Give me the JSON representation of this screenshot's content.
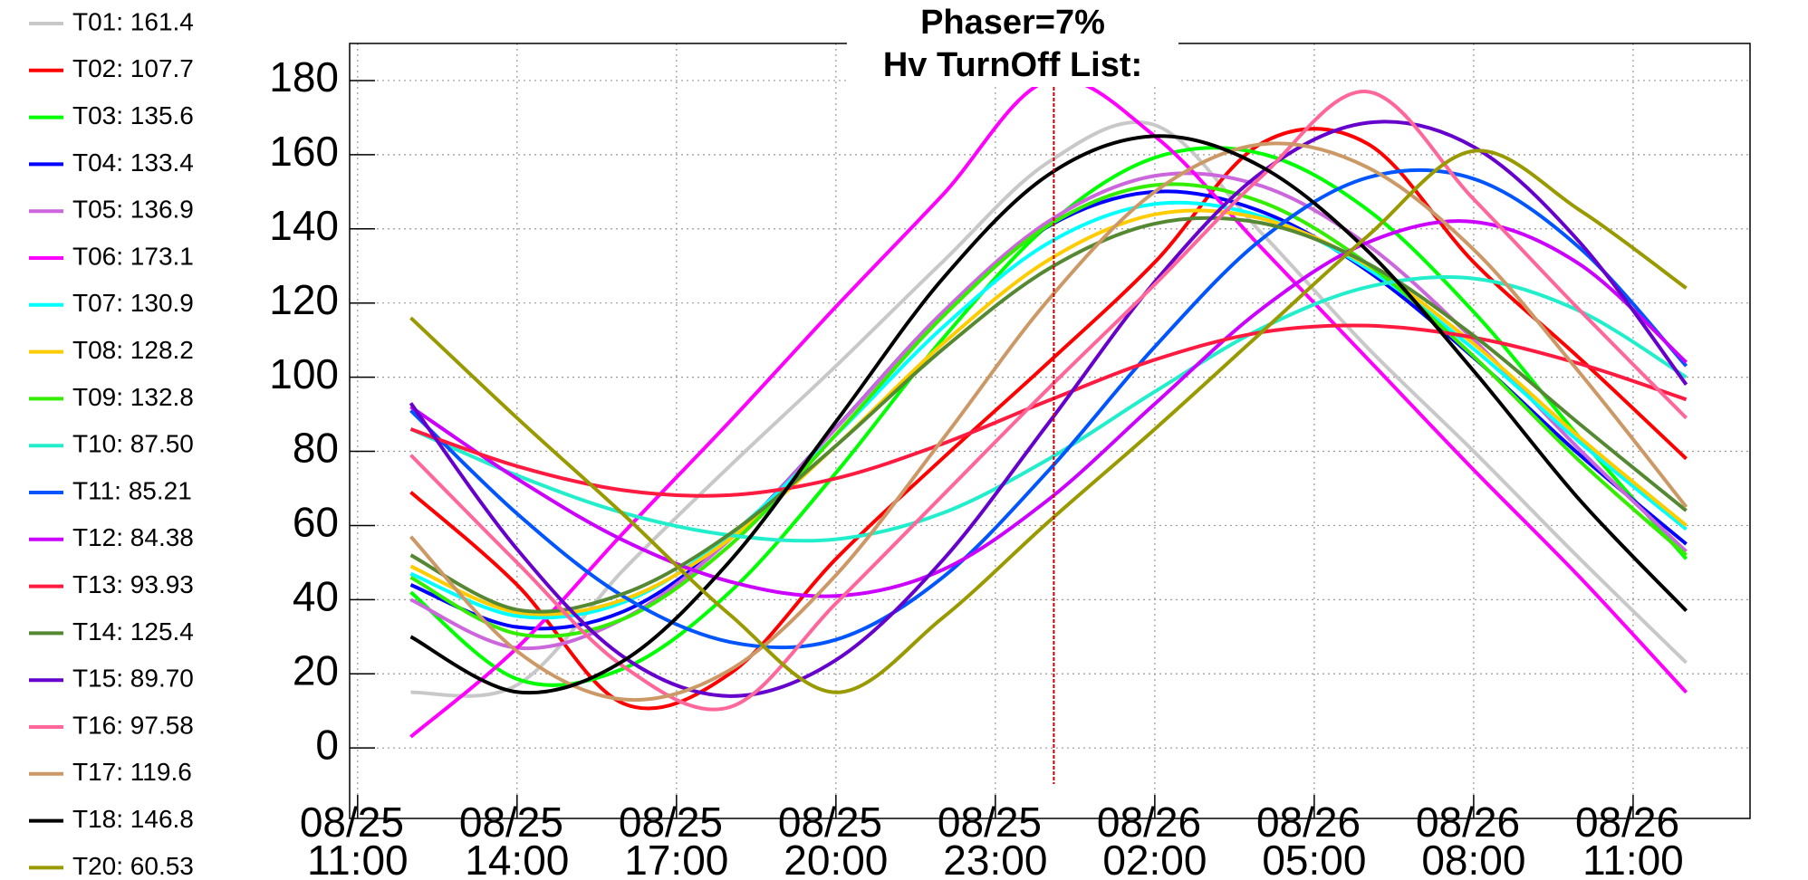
{
  "chart_data": {
    "type": "line",
    "title": "Phaser=7%",
    "subtitle": "Hv TurnOff List:",
    "x": [
      "08/25 12:00",
      "08/25 14:00",
      "08/25 16:00",
      "08/25 18:00",
      "08/25 20:00",
      "08/25 22:00",
      "08/26 00:00",
      "08/26 02:00",
      "08/26 04:00",
      "08/26 06:00",
      "08/26 08:00",
      "08/26 10:00",
      "08/26 12:00"
    ],
    "xlim": [
      "08/25 10:51",
      "08/26 13:12"
    ],
    "xticks": [
      "08/25 11:00",
      "08/25 14:00",
      "08/25 17:00",
      "08/25 20:00",
      "08/25 23:00",
      "08/26 02:00",
      "08/26 05:00",
      "08/26 08:00",
      "08/26 11:00"
    ],
    "ylim": [
      -19,
      190
    ],
    "yticks": [
      0,
      20,
      40,
      60,
      80,
      100,
      120,
      140,
      160,
      180
    ],
    "grid": true,
    "cursor_x": "08/26 00:06",
    "cursor_color": "#cc0000",
    "series": [
      {
        "name": "T01: 161.4",
        "color": "#c8c8c8",
        "values": [
          15,
          17,
          48,
          76,
          103,
          131,
          158,
          168,
          139,
          108,
          80,
          51,
          23
        ]
      },
      {
        "name": "T02: 107.7",
        "color": "#ff0000",
        "values": [
          69,
          44,
          12,
          20,
          51,
          78,
          104,
          131,
          163,
          163,
          131,
          105,
          78
        ]
      },
      {
        "name": "T03: 135.6",
        "color": "#00ff00",
        "values": [
          42,
          18.6,
          21.4,
          42,
          74.2,
          110.2,
          141.1,
          159.2,
          160.3,
          145.2,
          117.6,
          83.6,
          51
        ]
      },
      {
        "name": "T04: 133.4",
        "color": "#0000ff",
        "values": [
          44,
          32.6,
          36.8,
          56.5,
          86.3,
          117.3,
          140.7,
          150,
          144.7,
          128.7,
          105.3,
          79,
          55
        ]
      },
      {
        "name": "T05: 136.9",
        "color": "#cc66dd",
        "values": [
          40,
          27,
          34.8,
          56.2,
          86.2,
          117.4,
          142,
          154.3,
          151.6,
          135.7,
          110.1,
          80.4,
          53
        ]
      },
      {
        "name": "T06: 173.1",
        "color": "#ff00ff",
        "values": [
          3,
          27,
          58,
          88,
          119,
          149,
          180,
          165,
          135,
          105,
          75,
          46,
          15
        ]
      },
      {
        "name": "T07: 130.9",
        "color": "#00ffff",
        "values": [
          47,
          35.6,
          39.3,
          57.3,
          84.4,
          113.3,
          136.2,
          146.7,
          143.4,
          129.3,
          107.6,
          82.4,
          59
        ]
      },
      {
        "name": "T08: 128.2",
        "color": "#ffcc00",
        "values": [
          49,
          36.6,
          40,
          56.3,
          81.5,
          108.9,
          131.6,
          143.9,
          142.8,
          130.2,
          109,
          83.7,
          60
        ]
      },
      {
        "name": "T09: 132.8",
        "color": "#33ee00",
        "values": [
          46,
          30.8,
          34.8,
          54.6,
          84.5,
          116.2,
          140.9,
          151.8,
          147.3,
          130.6,
          105.6,
          77.3,
          52
        ]
      },
      {
        "name": "T10: 87.50",
        "color": "#22eecc",
        "values": [
          86,
          73.5,
          63.4,
          57.4,
          56.3,
          63.3,
          77.9,
          96.1,
          113.1,
          124.3,
          126.6,
          117.8,
          100
        ]
      },
      {
        "name": "T11: 85.21",
        "color": "#0055ff",
        "values": [
          91,
          63.2,
          40.9,
          28.6,
          29.2,
          45.9,
          74.8,
          108.2,
          137.1,
          153.8,
          153.5,
          134.8,
          103
        ]
      },
      {
        "name": "T12: 84.38",
        "color": "#cc00ff",
        "values": [
          92,
          72.6,
          56,
          44.9,
          41,
          48,
          67,
          92.8,
          118.3,
          136.3,
          141.9,
          130.4,
          104
        ]
      },
      {
        "name": "T13: 93.93",
        "color": "#ff1a40",
        "values": [
          86,
          76,
          69.5,
          68.2,
          72.7,
          82,
          93.7,
          104.7,
          112.1,
          113.9,
          110.7,
          103.6,
          94
        ]
      },
      {
        "name": "T14: 125.4",
        "color": "#558833",
        "values": [
          52,
          37.3,
          41.6,
          57.7,
          81.5,
          107.4,
          129.2,
          141.4,
          141.6,
          130.7,
          111.2,
          87.3,
          64
        ]
      },
      {
        "name": "T15: 89.70",
        "color": "#6600cc",
        "values": [
          93,
          53.6,
          24.6,
          14,
          23.7,
          50.5,
          87.6,
          125.7,
          155.1,
          168.6,
          162.1,
          136.3,
          98
        ]
      },
      {
        "name": "T16: 97.58",
        "color": "#ff6699",
        "values": [
          79,
          50,
          22,
          11,
          39,
          68,
          97,
          125,
          154,
          177,
          148,
          118,
          89
        ]
      },
      {
        "name": "T17: 119.6",
        "color": "#cc9966",
        "values": [
          57,
          26.1,
          13.1,
          21,
          46.6,
          83.1,
          120.9,
          150,
          162.8,
          156.6,
          134.4,
          101.1,
          65
        ]
      },
      {
        "name": "T18: 146.8",
        "color": "#000000",
        "values": [
          30,
          15.1,
          23.5,
          50.3,
          88,
          126.4,
          154.6,
          165,
          156.8,
          134.1,
          101.7,
          66.8,
          37
        ]
      },
      {
        "name": "T20: 60.53",
        "color": "#999900",
        "values": [
          116,
          89,
          63,
          36,
          15,
          35,
          61,
          86,
          112,
          138,
          161,
          145,
          124
        ]
      }
    ]
  }
}
